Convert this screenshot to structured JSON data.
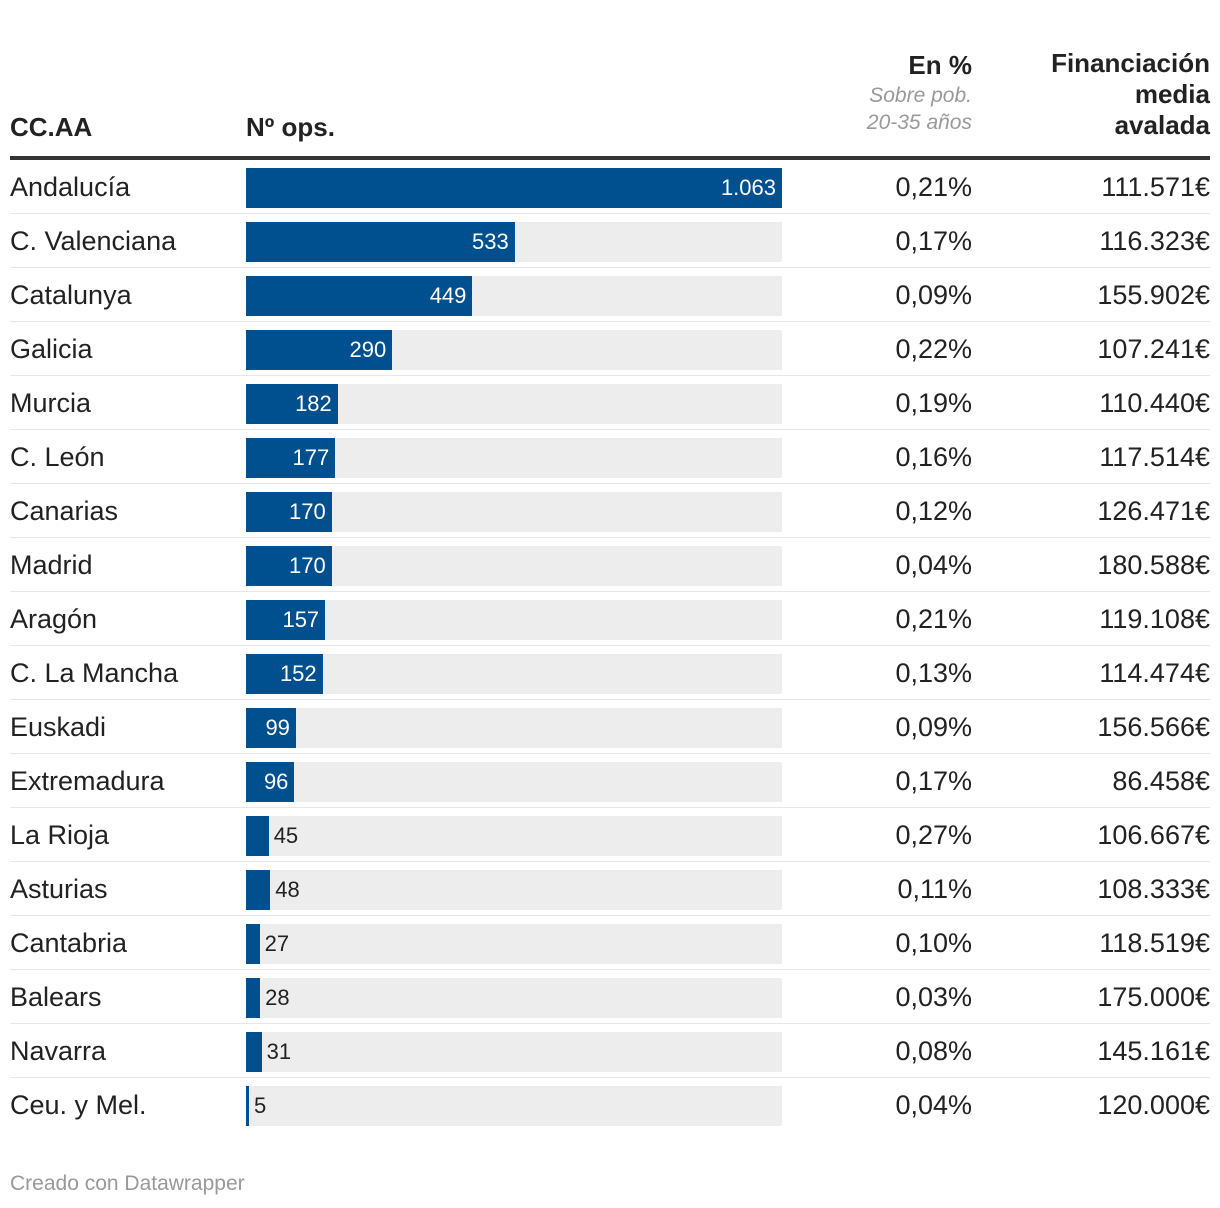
{
  "headers": {
    "region": "CC.AA",
    "ops": "Nº ops.",
    "pct": "En %",
    "pct_sub_1": "Sobre pob.",
    "pct_sub_2": "20-35 años",
    "fin_1": "Financiación",
    "fin_2": "media",
    "fin_3": "avalada"
  },
  "chart_data": {
    "type": "bar",
    "title": "",
    "xlabel": "",
    "ylabel": "Nº ops.",
    "xlim": [
      0,
      1063
    ],
    "categories": [
      "Andalucía",
      "C. Valenciana",
      "Catalunya",
      "Galicia",
      "Murcia",
      "C. León",
      "Canarias",
      "Madrid",
      "Aragón",
      "C. La Mancha",
      "Euskadi",
      "Extremadura",
      "La Rioja",
      "Asturias",
      "Cantabria",
      "Balears",
      "Navarra",
      "Ceu. y Mel."
    ],
    "values": [
      1063,
      533,
      449,
      290,
      182,
      177,
      170,
      170,
      157,
      152,
      99,
      96,
      45,
      48,
      27,
      28,
      31,
      5
    ],
    "value_labels": [
      "1.063",
      "533",
      "449",
      "290",
      "182",
      "177",
      "170",
      "170",
      "157",
      "152",
      "99",
      "96",
      "45",
      "48",
      "27",
      "28",
      "31",
      "5"
    ],
    "pct": [
      "0,21%",
      "0,17%",
      "0,09%",
      "0,22%",
      "0,19%",
      "0,16%",
      "0,12%",
      "0,04%",
      "0,21%",
      "0,13%",
      "0,09%",
      "0,17%",
      "0,27%",
      "0,11%",
      "0,10%",
      "0,03%",
      "0,08%",
      "0,04%"
    ],
    "financiacion": [
      "111.571€",
      "116.323€",
      "155.902€",
      "107.241€",
      "110.440€",
      "117.514€",
      "126.471€",
      "180.588€",
      "119.108€",
      "114.474€",
      "156.566€",
      "86.458€",
      "106.667€",
      "108.333€",
      "118.519€",
      "175.000€",
      "145.161€",
      "120.000€"
    ]
  },
  "colors": {
    "bar": "#00508f",
    "bar_bg": "#ededed"
  },
  "footer": "Creado con Datawrapper"
}
